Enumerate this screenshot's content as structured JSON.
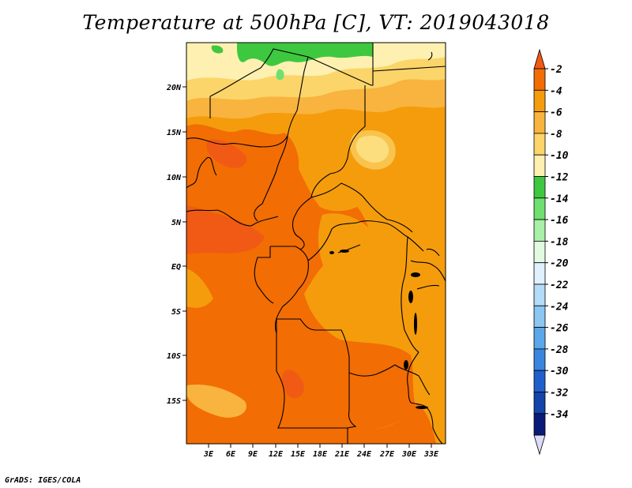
{
  "title": "Temperature at 500hPa [C], VT: 2019043018",
  "credit": "GrADS: IGES/COLA",
  "map": {
    "lat_labels": [
      "20N",
      "15N",
      "10N",
      "5N",
      "EQ",
      "5S",
      "10S",
      "15S"
    ],
    "lon_labels": [
      "3E",
      "6E",
      "9E",
      "12E",
      "15E",
      "18E",
      "21E",
      "24E",
      "27E",
      "30E",
      "33E"
    ]
  },
  "colorbar": {
    "labels": [
      "-2",
      "-4",
      "-6",
      "-8",
      "-10",
      "-12",
      "-14",
      "-16",
      "-18",
      "-20",
      "-22",
      "-24",
      "-26",
      "-28",
      "-30",
      "-32",
      "-34"
    ],
    "colors": [
      "#f05a14",
      "#f26d04",
      "#f59c0c",
      "#f8b43e",
      "#fbd56a",
      "#fdf0b0",
      "#3ec840",
      "#6ee070",
      "#a8f0a8",
      "#e2fae2",
      "#e0f0fc",
      "#b4dcf8",
      "#8cc6f2",
      "#5aa8ea",
      "#3a86de",
      "#2060cc",
      "#1244aa",
      "#0a1a78",
      "#dcdcf8"
    ]
  },
  "palette": {
    "warmest": "#f05a14",
    "warm": "#f26d04",
    "orange": "#f59c0c",
    "light_orange": "#f8b43e",
    "yellow": "#fbd56a",
    "pale_yellow": "#fdf0b0",
    "green": "#3ec840",
    "light_green": "#6ee070",
    "border": "#000000"
  }
}
